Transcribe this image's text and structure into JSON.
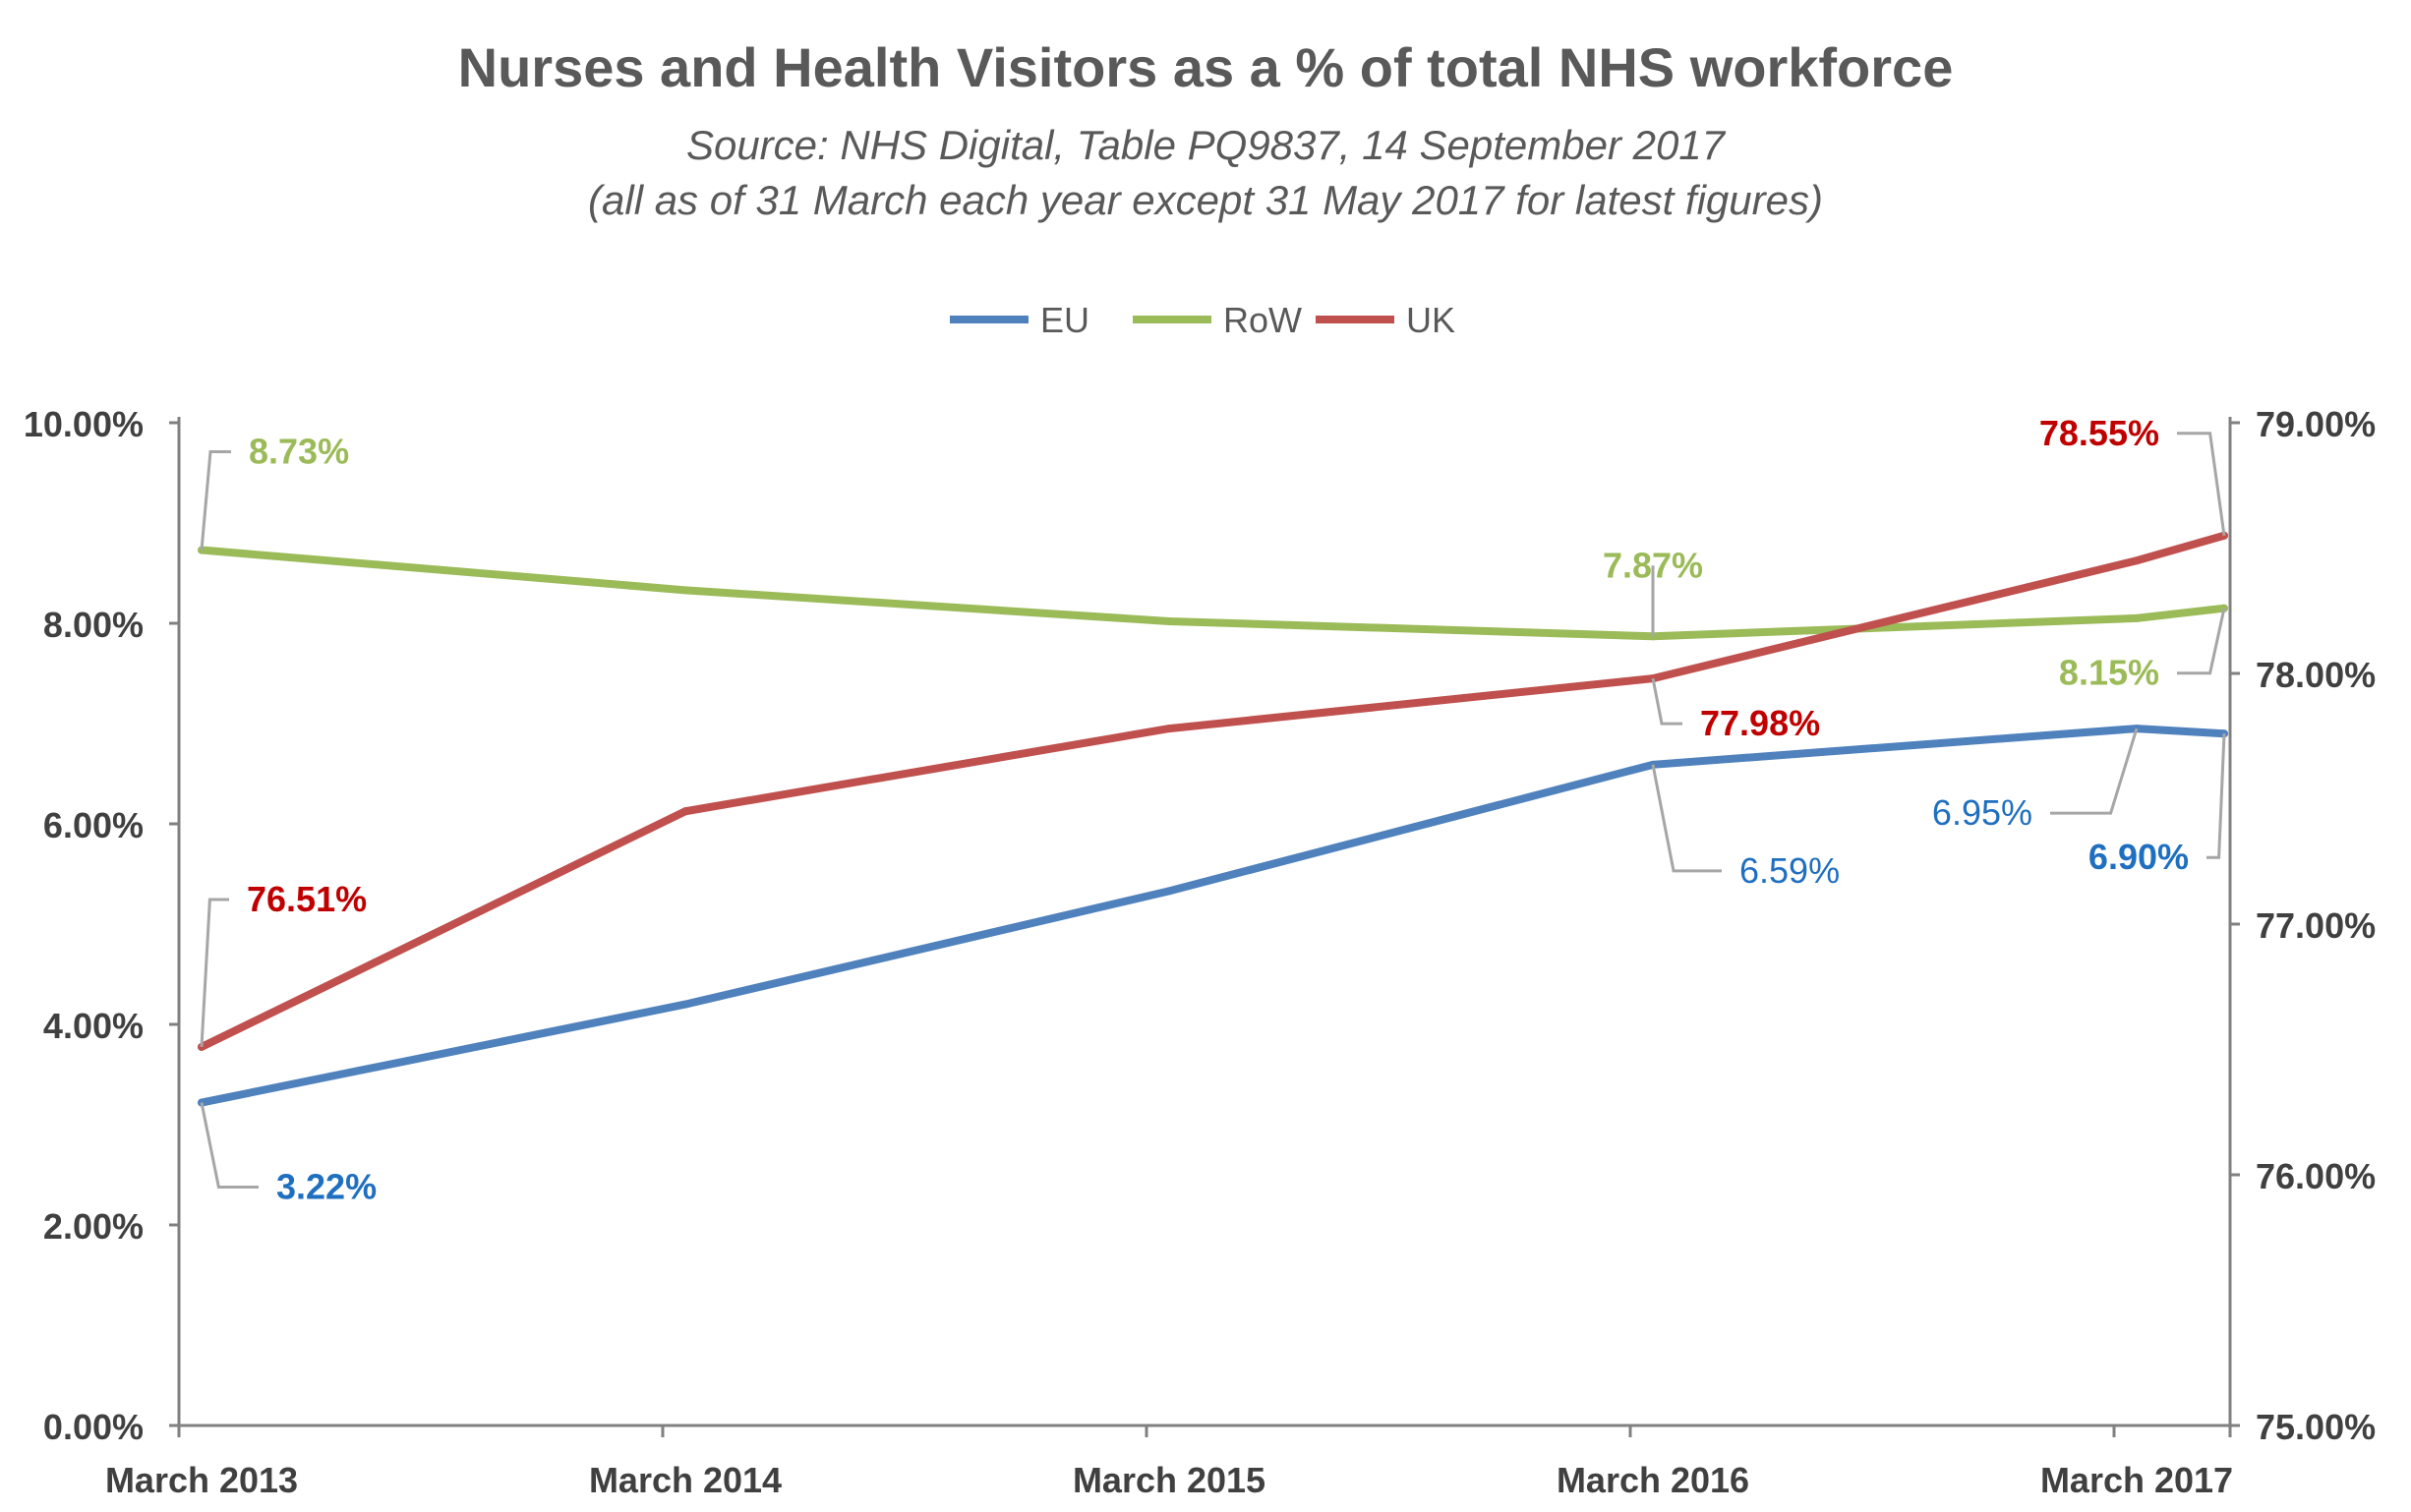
{
  "chart_data": {
    "type": "line",
    "title": "Nurses and Health Visitors as a % of total NHS workforce",
    "subtitle_lines": [
      "Source: NHS Digital, Table PQ9837, 14 September 2017",
      "(all as of 31 March each year except 31 May 2017 for latest figures)"
    ],
    "categories": [
      "March 2013",
      "March 2014",
      "March 2015",
      "March 2016",
      "March 2017",
      ""
    ],
    "left_axis": {
      "ticks": [
        "0.00%",
        "2.00%",
        "4.00%",
        "6.00%",
        "8.00%",
        "10.00%"
      ],
      "ylim": [
        0,
        10
      ]
    },
    "right_axis": {
      "ticks": [
        "75.00%",
        "76.00%",
        "77.00%",
        "78.00%",
        "79.00%"
      ],
      "ylim": [
        75,
        79
      ]
    },
    "legend_position": "top-center",
    "grid": false,
    "series": [
      {
        "name": "EU",
        "axis": "left",
        "color": "#4f81bd",
        "values": [
          3.22,
          4.2,
          5.33,
          6.59,
          6.95,
          6.9
        ]
      },
      {
        "name": "RoW",
        "axis": "left",
        "color": "#9bbb59",
        "values": [
          8.73,
          8.33,
          8.02,
          7.87,
          8.05,
          8.15
        ]
      },
      {
        "name": "UK",
        "axis": "right",
        "color": "#c0504d",
        "values": [
          76.51,
          77.45,
          77.78,
          77.98,
          78.45,
          78.55
        ]
      }
    ],
    "data_labels": [
      {
        "series": "RoW",
        "point": 0,
        "text": "8.73%",
        "color": "#9bbb59",
        "bold": true
      },
      {
        "series": "RoW",
        "point": 3,
        "text": "7.87%",
        "color": "#9bbb59",
        "bold": true
      },
      {
        "series": "RoW",
        "point": 5,
        "text": "8.15%",
        "color": "#9bbb59",
        "bold": true
      },
      {
        "series": "UK",
        "point": 0,
        "text": "76.51%",
        "color": "#c00000",
        "bold": true
      },
      {
        "series": "UK",
        "point": 3,
        "text": "77.98%",
        "color": "#c00000",
        "bold": true
      },
      {
        "series": "UK",
        "point": 5,
        "text": "78.55%",
        "color": "#c00000",
        "bold": true
      },
      {
        "series": "EU",
        "point": 0,
        "text": "3.22%",
        "color": "#1f6fc0",
        "bold": true
      },
      {
        "series": "EU",
        "point": 3,
        "text": "6.59%",
        "color": "#1f6fc0",
        "bold": false
      },
      {
        "series": "EU",
        "point": 4,
        "text": "6.95%",
        "color": "#1f6fc0",
        "bold": false
      },
      {
        "series": "EU",
        "point": 5,
        "text": "6.90%",
        "color": "#1f6fc0",
        "bold": true
      }
    ]
  }
}
